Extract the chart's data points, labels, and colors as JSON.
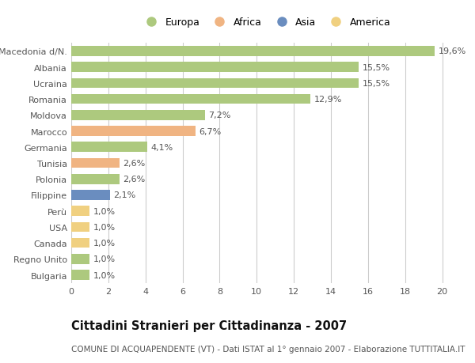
{
  "categories": [
    "Macedonia d/N.",
    "Albania",
    "Ucraina",
    "Romania",
    "Moldova",
    "Marocco",
    "Germania",
    "Tunisia",
    "Polonia",
    "Filippine",
    "Perù",
    "USA",
    "Canada",
    "Regno Unito",
    "Bulgaria"
  ],
  "values": [
    19.6,
    15.5,
    15.5,
    12.9,
    7.2,
    6.7,
    4.1,
    2.6,
    2.6,
    2.1,
    1.0,
    1.0,
    1.0,
    1.0,
    1.0
  ],
  "labels": [
    "19,6%",
    "15,5%",
    "15,5%",
    "12,9%",
    "7,2%",
    "6,7%",
    "4,1%",
    "2,6%",
    "2,6%",
    "2,1%",
    "1,0%",
    "1,0%",
    "1,0%",
    "1,0%",
    "1,0%"
  ],
  "continents": [
    "Europa",
    "Europa",
    "Europa",
    "Europa",
    "Europa",
    "Africa",
    "Europa",
    "Africa",
    "Europa",
    "Asia",
    "America",
    "America",
    "America",
    "Europa",
    "Europa"
  ],
  "colors": {
    "Europa": "#adc97e",
    "Africa": "#f0b482",
    "Asia": "#6a8dbf",
    "America": "#f0d080"
  },
  "xlim": [
    0,
    21
  ],
  "xticks": [
    0,
    2,
    4,
    6,
    8,
    10,
    12,
    14,
    16,
    18,
    20
  ],
  "title": "Cittadini Stranieri per Cittadinanza - 2007",
  "subtitle": "COMUNE DI ACQUAPENDENTE (VT) - Dati ISTAT al 1° gennaio 2007 - Elaborazione TUTTITALIA.IT",
  "background_color": "#ffffff",
  "grid_color": "#cccccc",
  "bar_height": 0.62,
  "label_fontsize": 8.0,
  "tick_fontsize": 8.0,
  "title_fontsize": 10.5,
  "subtitle_fontsize": 7.5,
  "legend_entries": [
    "Europa",
    "Africa",
    "Asia",
    "America"
  ]
}
